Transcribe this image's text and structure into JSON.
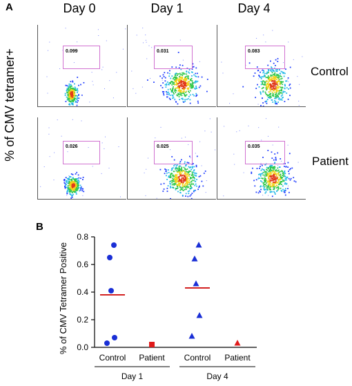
{
  "panel_a": {
    "letter": "A",
    "y_label": "% of CMV tetramer+",
    "columns": [
      "Day 0",
      "Day 1",
      "Day 4"
    ],
    "rows": [
      {
        "label": "Control",
        "gate_values": [
          "0.099",
          "0.031",
          "0.083"
        ]
      },
      {
        "label": "Patient",
        "gate_values": [
          "0.026",
          "0.025",
          "0.035"
        ]
      }
    ]
  },
  "chart_data": {
    "type": "scatter",
    "panel": "B",
    "ylabel": "% of CMV Tetramer Positive",
    "ylim": [
      0.0,
      0.8
    ],
    "yticks": [
      "0.0",
      "0.2",
      "0.4",
      "0.6",
      "0.8"
    ],
    "groups": [
      {
        "label": "Control",
        "day": "Day 1",
        "marker": "circle",
        "color": "#1a2fd6",
        "values": [
          0.74,
          0.65,
          0.41,
          0.07,
          0.03
        ],
        "mean": 0.38
      },
      {
        "label": "Patient",
        "day": "Day 1",
        "marker": "square",
        "color": "#e01b1b",
        "values": [
          0.02
        ],
        "mean": null
      },
      {
        "label": "Control",
        "day": "Day 4",
        "marker": "triangle",
        "color": "#1a2fd6",
        "values": [
          0.74,
          0.64,
          0.46,
          0.23,
          0.08
        ],
        "mean": 0.43
      },
      {
        "label": "Patient",
        "day": "Day 4",
        "marker": "triangle",
        "color": "#e01b1b",
        "values": [
          0.03
        ],
        "mean": null
      }
    ],
    "day_labels": [
      "Day 1",
      "Day 4"
    ],
    "mean_color": "#cc0000"
  }
}
